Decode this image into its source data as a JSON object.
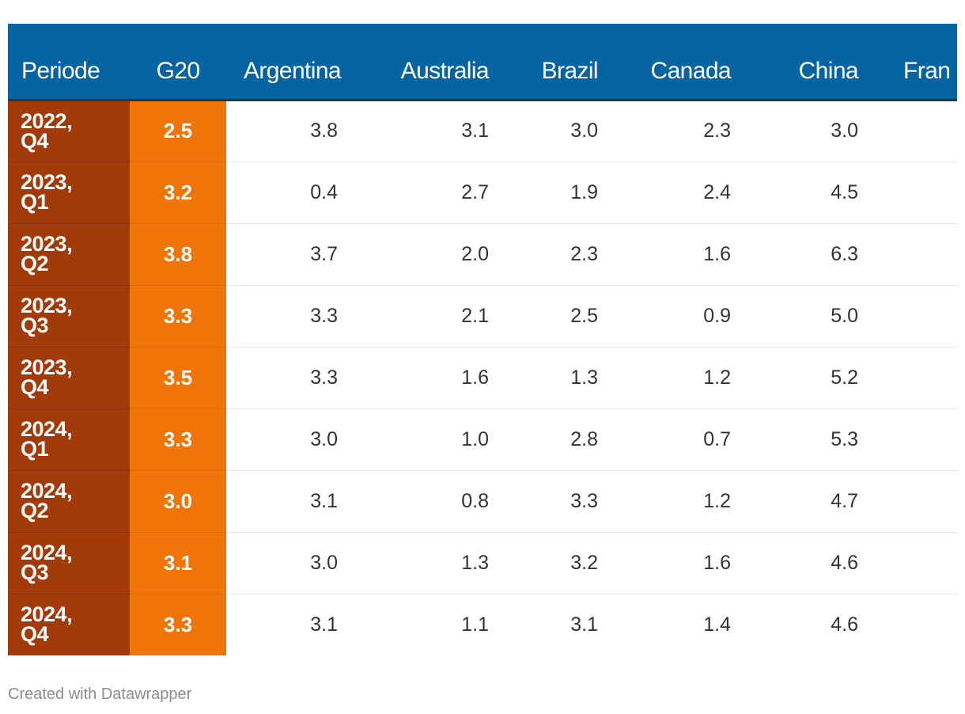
{
  "chart_data": {
    "type": "table",
    "columns": [
      "Periode",
      "G20",
      "Argentina",
      "Australia",
      "Brazil",
      "Canada",
      "China",
      "Fran"
    ],
    "rows": [
      {
        "period_line1": "2022,",
        "period_line2": "Q4",
        "values": [
          "2.5",
          "3.8",
          "3.1",
          "3.0",
          "2.3",
          "3.0"
        ]
      },
      {
        "period_line1": "2023,",
        "period_line2": "Q1",
        "values": [
          "3.2",
          "0.4",
          "2.7",
          "1.9",
          "2.4",
          "4.5"
        ]
      },
      {
        "period_line1": "2023,",
        "period_line2": "Q2",
        "values": [
          "3.8",
          "3.7",
          "2.0",
          "2.3",
          "1.6",
          "6.3"
        ]
      },
      {
        "period_line1": "2023,",
        "period_line2": "Q3",
        "values": [
          "3.3",
          "3.3",
          "2.1",
          "2.5",
          "0.9",
          "5.0"
        ]
      },
      {
        "period_line1": "2023,",
        "period_line2": "Q4",
        "values": [
          "3.5",
          "3.3",
          "1.6",
          "1.3",
          "1.2",
          "5.2"
        ]
      },
      {
        "period_line1": "2024,",
        "period_line2": "Q1",
        "values": [
          "3.3",
          "3.0",
          "1.0",
          "2.8",
          "0.7",
          "5.3"
        ]
      },
      {
        "period_line1": "2024,",
        "period_line2": "Q2",
        "values": [
          "3.0",
          "3.1",
          "0.8",
          "3.3",
          "1.2",
          "4.7"
        ]
      },
      {
        "period_line1": "2024,",
        "period_line2": "Q3",
        "values": [
          "3.1",
          "3.0",
          "1.3",
          "3.2",
          "1.6",
          "4.6"
        ]
      },
      {
        "period_line1": "2024,",
        "period_line2": "Q4",
        "values": [
          "3.3",
          "3.1",
          "1.1",
          "3.1",
          "1.4",
          "4.6"
        ]
      }
    ]
  },
  "colors": {
    "header_bg": "#0764a2",
    "period_bg": "#a33a0a",
    "g20_bg": "#f07408"
  },
  "footer": {
    "credit": "Created with Datawrapper"
  }
}
